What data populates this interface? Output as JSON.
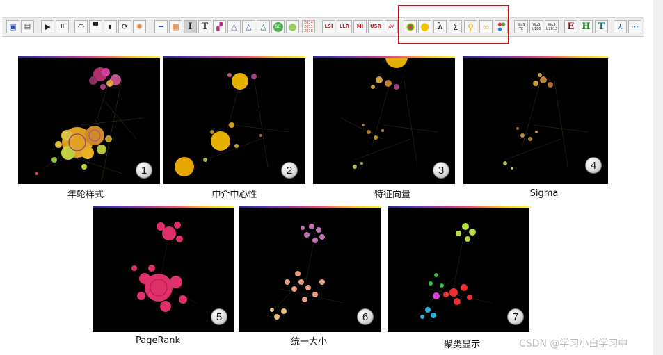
{
  "toolbar": {
    "buttons": [
      {
        "name": "save-icon",
        "glyph": "💾"
      },
      {
        "name": "movie-icon",
        "glyph": "🎬"
      },
      {
        "name": "play-icon",
        "glyph": "▶"
      },
      {
        "name": "pause-icon",
        "glyph": "⏸"
      },
      {
        "name": "arc-icon",
        "glyph": "◠"
      },
      {
        "name": "hat-icon",
        "glyph": "▬"
      },
      {
        "name": "marker-icon",
        "glyph": "▮"
      },
      {
        "name": "refresh-icon",
        "glyph": "⟳"
      },
      {
        "name": "burst-icon",
        "glyph": "✺"
      },
      {
        "name": "line-icon",
        "glyph": "━"
      },
      {
        "name": "grid-icon",
        "glyph": "▦"
      },
      {
        "name": "column-icon",
        "glyph": "I"
      },
      {
        "name": "serif-t-icon",
        "glyph": "T"
      },
      {
        "name": "blocks-icon",
        "glyph": "▞"
      },
      {
        "name": "triangle-icon-1",
        "glyph": "△"
      },
      {
        "name": "triangle-icon-2",
        "glyph": "△"
      },
      {
        "name": "triangle-icon-3",
        "glyph": "△"
      },
      {
        "name": "sc-icon",
        "glyph": "SC"
      },
      {
        "name": "green-circle-icon",
        "glyph": "●"
      },
      {
        "name": "years-icon",
        "glyph": "2014 2015 2016"
      },
      {
        "name": "lsi-button",
        "glyph": "LSI"
      },
      {
        "name": "llr-button",
        "glyph": "LLR"
      },
      {
        "name": "mi-button",
        "glyph": "MI"
      },
      {
        "name": "usr-button",
        "glyph": "USR"
      },
      {
        "name": "slashes-icon",
        "glyph": "///"
      },
      {
        "name": "ring-color-icon",
        "glyph": "◉"
      },
      {
        "name": "yellow-circle-icon",
        "glyph": "●"
      },
      {
        "name": "lambda-icon",
        "glyph": "λ"
      },
      {
        "name": "sigma-icon",
        "glyph": "Σ"
      },
      {
        "name": "pagerank-icon",
        "glyph": "⚲"
      },
      {
        "name": "uniform-size-icon",
        "glyph": "∞"
      },
      {
        "name": "cluster-color-icon",
        "glyph": "⁂"
      },
      {
        "name": "wos-tc-button",
        "glyph": "WoS TC"
      },
      {
        "name": "wos-u180-button",
        "glyph": "WoS U180"
      },
      {
        "name": "wos-u2013-button",
        "glyph": "WoS U2013"
      },
      {
        "name": "e-button",
        "glyph": "E"
      },
      {
        "name": "h-button",
        "glyph": "H"
      },
      {
        "name": "t-button",
        "glyph": "T"
      },
      {
        "name": "tree-icon",
        "glyph": "⅄"
      },
      {
        "name": "network-line-icon",
        "glyph": "⋯"
      }
    ]
  },
  "panels": [
    {
      "number": "1",
      "caption": "年轮样式"
    },
    {
      "number": "2",
      "caption": "中介中心性"
    },
    {
      "number": "3",
      "caption": "特征向量"
    },
    {
      "number": "4",
      "caption": "Sigma"
    },
    {
      "number": "5",
      "caption": "PageRank"
    },
    {
      "number": "6",
      "caption": "统一大小"
    },
    {
      "number": "7",
      "caption": "聚类显示"
    }
  ],
  "colors": {
    "highlight_box": "#c3111a",
    "panel_background": "#000000"
  },
  "watermark": "CSDN @学习小白学习中"
}
